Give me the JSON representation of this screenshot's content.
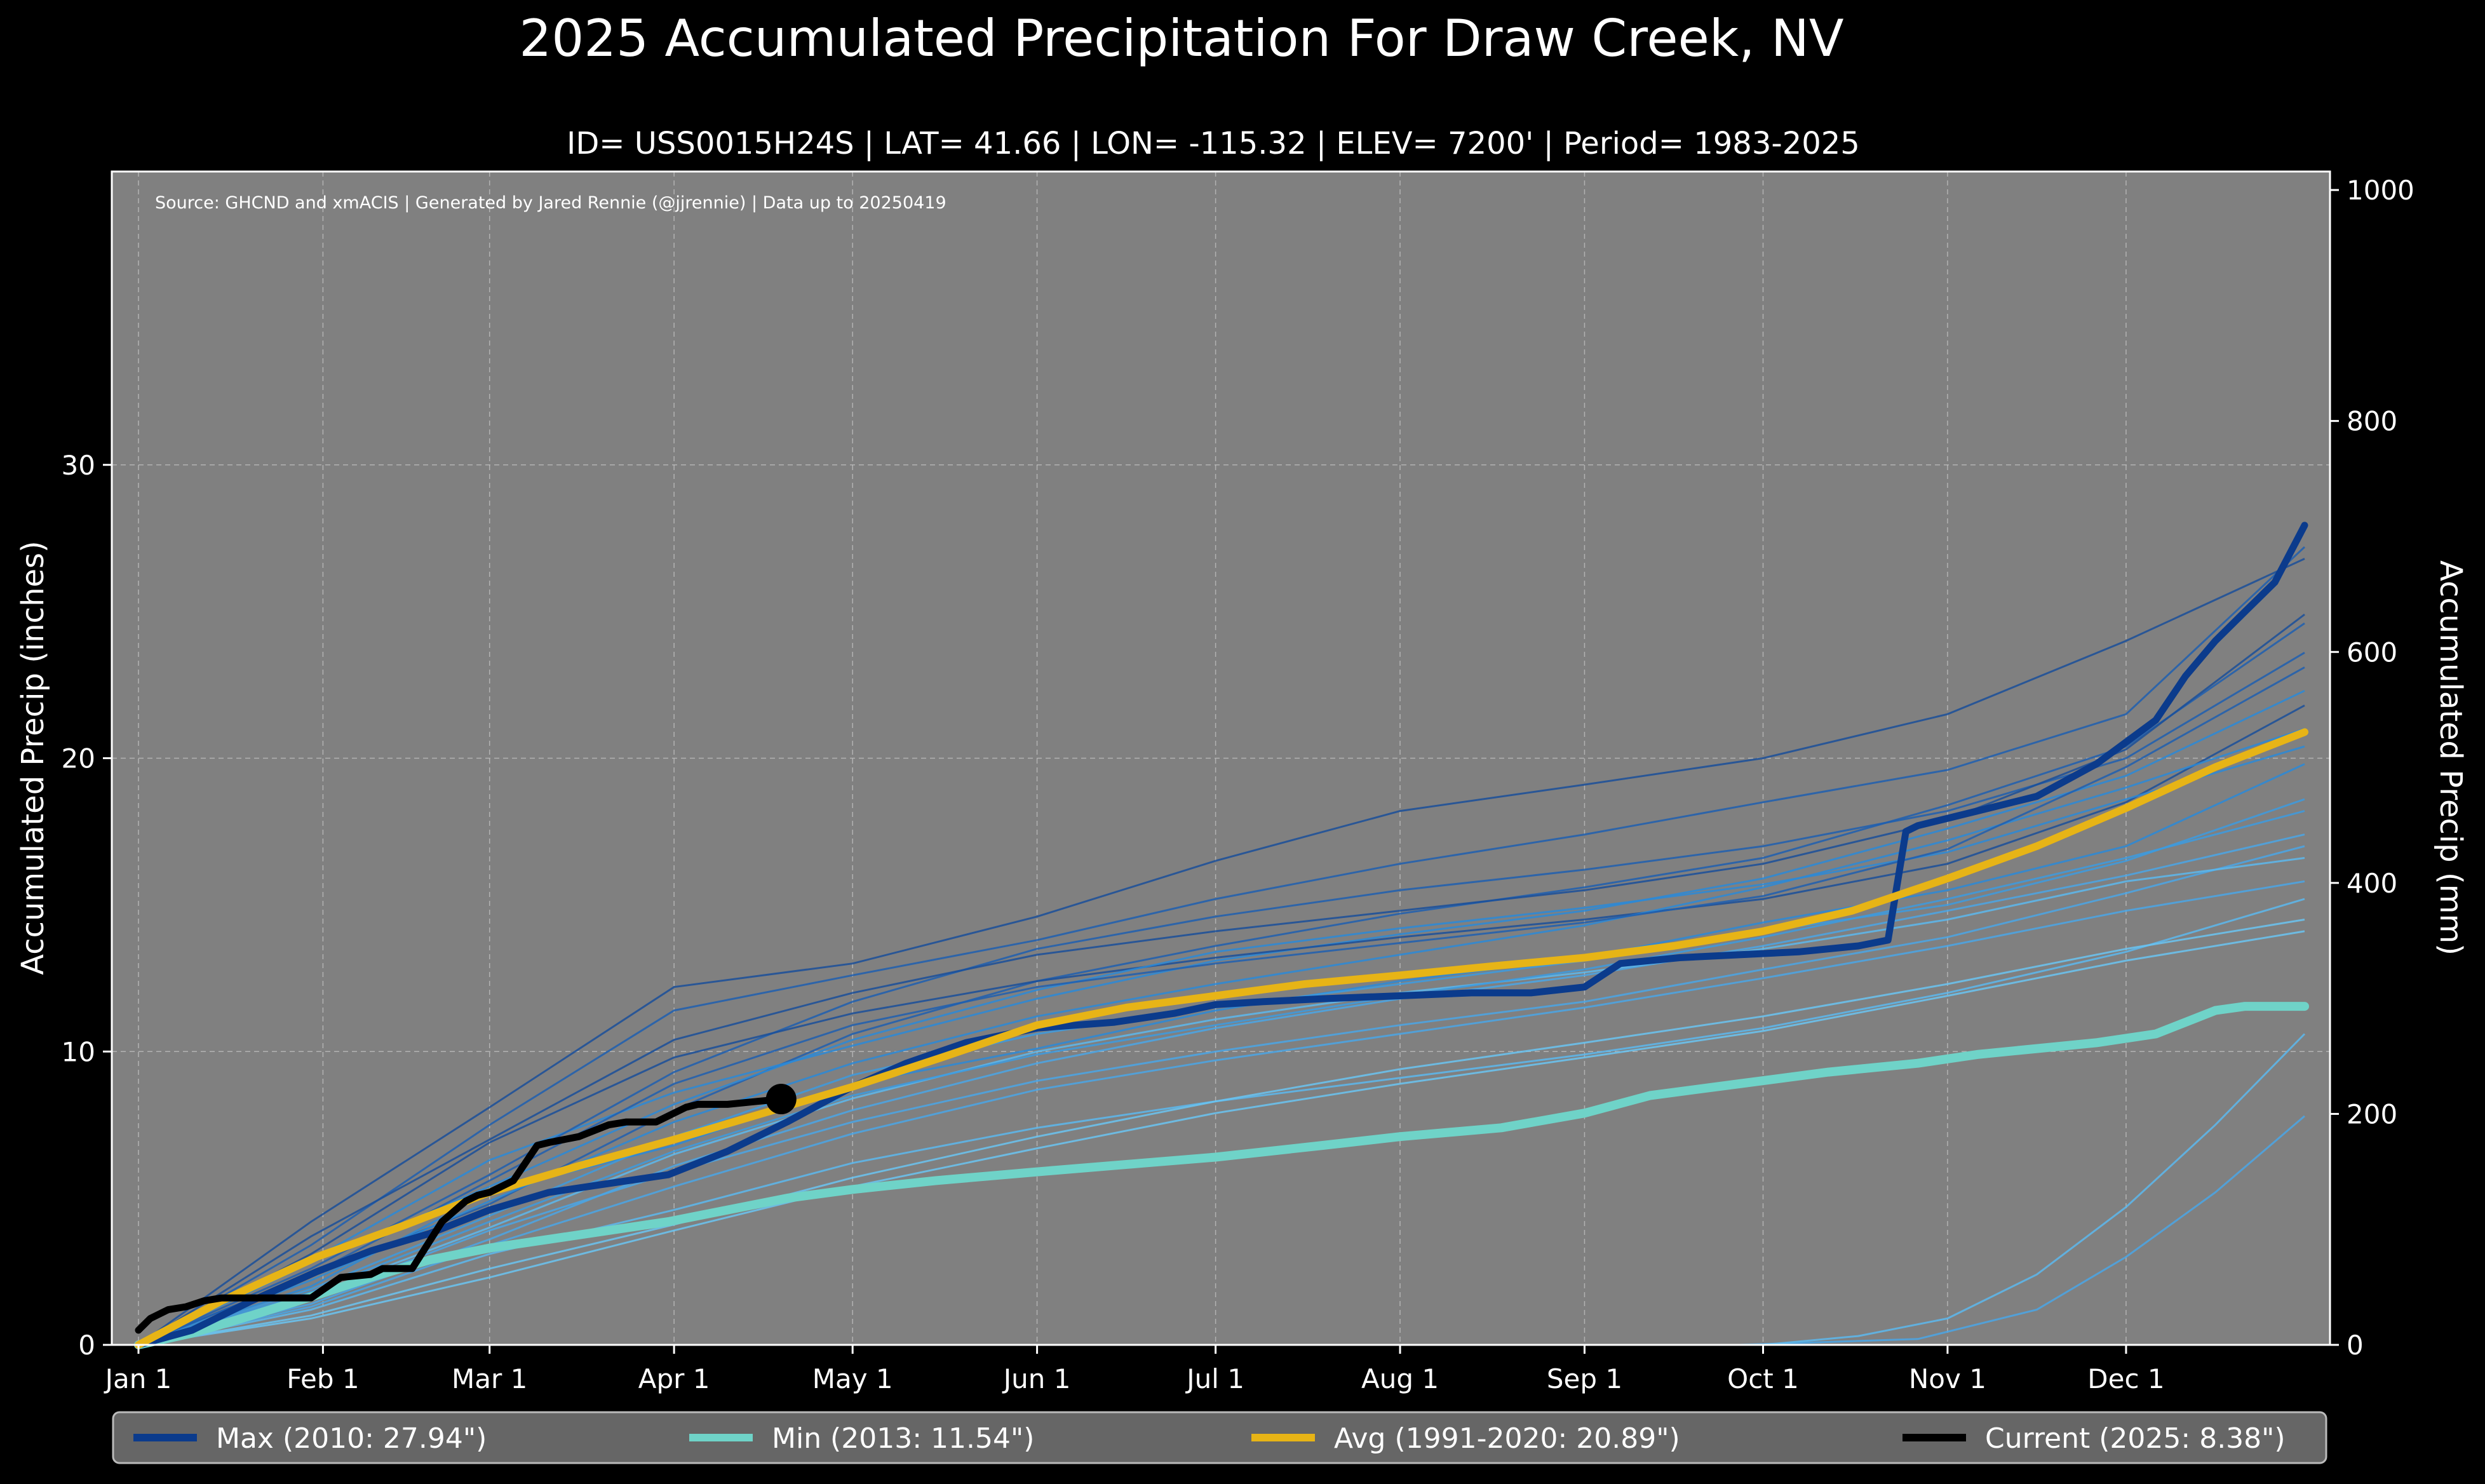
{
  "chart_data": {
    "type": "line",
    "title": "2025 Accumulated Precipitation For Draw Creek, NV",
    "subtitle": "ID= USS0015H24S | LAT= 41.66 | LON= -115.32 | ELEV= 7200' | Period= 1983-2025",
    "source_note": "Source: GHCND and xmACIS | Generated by Jared Rennie (@jjrennie) | Data up to 20250419",
    "ylabel": "Accumulated Precip (inches)",
    "y2label": "Accumulated Precip (mm)",
    "xlabel": "",
    "x_unit": "day of year",
    "xlim": [
      1,
      365
    ],
    "ylim": [
      0,
      40
    ],
    "y2lim": [
      0,
      1016
    ],
    "xticks": [
      {
        "day": 1,
        "label": "Jan 1"
      },
      {
        "day": 32,
        "label": "Feb 1"
      },
      {
        "day": 60,
        "label": "Mar 1"
      },
      {
        "day": 91,
        "label": "Apr 1"
      },
      {
        "day": 121,
        "label": "May 1"
      },
      {
        "day": 152,
        "label": "Jun 1"
      },
      {
        "day": 182,
        "label": "Jul 1"
      },
      {
        "day": 213,
        "label": "Aug 1"
      },
      {
        "day": 244,
        "label": "Sep 1"
      },
      {
        "day": 274,
        "label": "Oct 1"
      },
      {
        "day": 305,
        "label": "Nov 1"
      },
      {
        "day": 335,
        "label": "Dec 1"
      }
    ],
    "yticks": [
      0,
      10,
      20,
      30
    ],
    "y2ticks": [
      0,
      200,
      400,
      600,
      800,
      1000
    ],
    "grid": true,
    "legend_position": "bottom",
    "series": [
      {
        "name": "Max (2010:  27.94\")",
        "role": "max",
        "color": "#0b3b8c",
        "x": [
          1,
          10,
          20,
          31,
          40,
          50,
          60,
          70,
          80,
          90,
          100,
          110,
          121,
          130,
          140,
          152,
          165,
          175,
          182,
          190,
          200,
          213,
          225,
          235,
          244,
          250,
          260,
          270,
          280,
          290,
          295,
          298,
          300,
          310,
          320,
          330,
          340,
          345,
          350,
          355,
          360,
          365
        ],
        "values": [
          0.0,
          0.5,
          1.5,
          2.5,
          3.2,
          3.8,
          4.6,
          5.2,
          5.5,
          5.8,
          6.6,
          7.6,
          8.8,
          9.6,
          10.3,
          10.8,
          11.0,
          11.3,
          11.6,
          11.7,
          11.8,
          11.9,
          12.0,
          12.0,
          12.2,
          13.0,
          13.2,
          13.3,
          13.4,
          13.6,
          13.8,
          17.5,
          17.7,
          18.2,
          18.7,
          19.8,
          21.3,
          22.8,
          24.0,
          25.0,
          26.0,
          27.94
        ]
      },
      {
        "name": "Min (2013:  11.54\")",
        "role": "min",
        "color": "#6fd3c8",
        "x": [
          1,
          10,
          20,
          31,
          40,
          50,
          60,
          70,
          80,
          90,
          100,
          110,
          121,
          135,
          152,
          170,
          182,
          200,
          213,
          230,
          244,
          255,
          270,
          285,
          300,
          310,
          320,
          330,
          340,
          345,
          350,
          355,
          365
        ],
        "values": [
          0.0,
          0.4,
          1.0,
          1.7,
          2.3,
          2.9,
          3.3,
          3.6,
          3.9,
          4.2,
          4.6,
          5.0,
          5.3,
          5.6,
          5.9,
          6.2,
          6.4,
          6.8,
          7.1,
          7.4,
          7.9,
          8.5,
          8.9,
          9.3,
          9.6,
          9.9,
          10.1,
          10.3,
          10.6,
          11.0,
          11.4,
          11.54,
          11.54
        ]
      },
      {
        "name": "Avg (1991-2020:  20.89\")",
        "role": "avg",
        "color": "#e7b416",
        "x": [
          1,
          15,
          31,
          46,
          60,
          75,
          91,
          106,
          121,
          136,
          152,
          167,
          182,
          197,
          213,
          228,
          244,
          259,
          274,
          289,
          305,
          320,
          335,
          350,
          365
        ],
        "values": [
          0.0,
          1.5,
          3.0,
          4.1,
          5.2,
          6.1,
          7.0,
          7.9,
          8.8,
          9.8,
          10.9,
          11.5,
          11.9,
          12.3,
          12.6,
          12.9,
          13.2,
          13.6,
          14.1,
          14.8,
          15.9,
          17.0,
          18.3,
          19.7,
          20.89
        ]
      },
      {
        "name": "Current (2025:   8.38\")",
        "role": "current",
        "color": "#000000",
        "x": [
          1,
          3,
          6,
          9,
          12,
          15,
          20,
          25,
          30,
          35,
          40,
          42,
          47,
          52,
          56,
          58,
          60,
          64,
          68,
          70,
          75,
          80,
          83,
          88,
          93,
          95,
          100,
          105,
          109
        ],
        "values": [
          0.5,
          0.9,
          1.2,
          1.3,
          1.5,
          1.6,
          1.6,
          1.6,
          1.6,
          2.3,
          2.4,
          2.6,
          2.6,
          4.2,
          4.9,
          5.1,
          5.2,
          5.6,
          6.8,
          6.9,
          7.1,
          7.5,
          7.6,
          7.6,
          8.1,
          8.2,
          8.2,
          8.3,
          8.38
        ]
      }
    ],
    "historical_years": [
      {
        "x": [
          1,
          30,
          60,
          91,
          121,
          152,
          182,
          213,
          244,
          274,
          305,
          335,
          365
        ],
        "values": [
          0,
          2.4,
          4.8,
          8.0,
          10.6,
          12.4,
          13.6,
          14.7,
          15.6,
          16.6,
          18.4,
          20.4,
          24.6
        ],
        "tone": "#1f5fb0"
      },
      {
        "x": [
          1,
          30,
          60,
          91,
          121,
          152,
          182,
          213,
          244,
          274,
          305,
          335,
          365
        ],
        "values": [
          0,
          3.4,
          7.5,
          11.4,
          12.6,
          13.8,
          15.2,
          16.4,
          17.4,
          18.5,
          19.6,
          21.5,
          27.2
        ],
        "tone": "#1f5fb0"
      },
      {
        "x": [
          1,
          30,
          60,
          91,
          121,
          152,
          182,
          213,
          244,
          274,
          305,
          335,
          365
        ],
        "values": [
          0,
          4.2,
          8.1,
          12.2,
          13.0,
          14.6,
          16.5,
          18.2,
          19.1,
          20.0,
          21.5,
          24.0,
          26.8
        ],
        "tone": "#1a4f9a"
      },
      {
        "x": [
          1,
          30,
          60,
          91,
          121,
          152,
          182,
          213,
          244,
          274,
          305,
          335,
          365
        ],
        "values": [
          0,
          2.0,
          5.2,
          6.8,
          8.9,
          10.1,
          11.4,
          12.4,
          13.2,
          14.4,
          15.5,
          17.0,
          19.8
        ],
        "tone": "#2a8ad8"
      },
      {
        "x": [
          1,
          30,
          60,
          91,
          121,
          152,
          182,
          213,
          244,
          274,
          305,
          335,
          365
        ],
        "values": [
          0,
          1.6,
          3.9,
          5.9,
          7.6,
          9.0,
          10.0,
          10.9,
          11.7,
          12.8,
          13.9,
          15.4,
          17.0
        ],
        "tone": "#4aa6e6"
      },
      {
        "x": [
          1,
          30,
          60,
          91,
          121,
          152,
          182,
          213,
          244,
          274,
          305,
          335,
          365
        ],
        "values": [
          0,
          2.9,
          6.3,
          8.6,
          10.2,
          11.8,
          13.1,
          14.0,
          14.8,
          15.9,
          17.6,
          19.4,
          22.3
        ],
        "tone": "#2a8ad8"
      },
      {
        "x": [
          1,
          30,
          60,
          91,
          121,
          152,
          182,
          213,
          244,
          274,
          305,
          335,
          365
        ],
        "values": [
          0,
          1.2,
          3.1,
          4.6,
          6.2,
          7.4,
          8.3,
          9.1,
          9.9,
          10.8,
          12.0,
          13.4,
          15.2
        ],
        "tone": "#5cb8ee"
      },
      {
        "x": [
          1,
          30,
          60,
          91,
          121,
          152,
          182,
          213,
          244,
          274,
          305,
          335,
          365
        ],
        "values": [
          0,
          2.6,
          5.8,
          9.3,
          11.7,
          13.5,
          14.6,
          15.5,
          16.2,
          17.0,
          18.2,
          20.0,
          23.6
        ],
        "tone": "#1f5fb0"
      },
      {
        "x": [
          1,
          30,
          60,
          91,
          121,
          152,
          182,
          213,
          244,
          274,
          305,
          335,
          365
        ],
        "values": [
          0,
          1.9,
          4.4,
          7.1,
          9.2,
          10.6,
          11.5,
          12.3,
          13.1,
          14.1,
          15.0,
          16.5,
          18.6
        ],
        "tone": "#3c9be0"
      },
      {
        "x": [
          1,
          30,
          60,
          91,
          121,
          152,
          182,
          213,
          244,
          274,
          305,
          335,
          365
        ],
        "values": [
          0,
          3.1,
          6.9,
          9.8,
          11.3,
          12.4,
          13.2,
          13.9,
          14.5,
          15.2,
          16.4,
          18.5,
          21.8
        ],
        "tone": "#1a4f9a"
      },
      {
        "x": [
          1,
          30,
          60,
          91,
          121,
          152,
          182,
          213,
          244,
          274,
          305,
          335,
          365
        ],
        "values": [
          0,
          1.4,
          3.6,
          6.1,
          8.0,
          9.6,
          10.8,
          11.8,
          12.6,
          13.6,
          14.8,
          16.0,
          17.4
        ],
        "tone": "#4aa6e6"
      },
      {
        "x": [
          1,
          30,
          60,
          91,
          121,
          152,
          182,
          213,
          244,
          274,
          305,
          335,
          365
        ],
        "values": [
          0,
          2.2,
          4.9,
          7.6,
          9.6,
          11.2,
          12.3,
          13.3,
          14.3,
          15.6,
          17.2,
          19.0,
          21.0
        ],
        "tone": "#2a8ad8"
      },
      {
        "x": [
          1,
          30,
          60,
          91,
          121,
          152,
          182,
          213,
          244,
          274,
          305,
          335,
          365
        ],
        "values": [
          0,
          1.0,
          2.6,
          4.1,
          5.7,
          7.1,
          8.3,
          9.4,
          10.3,
          11.2,
          12.3,
          13.5,
          14.5
        ],
        "tone": "#6ac4f2"
      },
      {
        "x": [
          1,
          30,
          60,
          91,
          121,
          152,
          182,
          213,
          244,
          274,
          305,
          335,
          365
        ],
        "values": [
          0,
          3.7,
          7.0,
          10.4,
          12.0,
          13.3,
          14.1,
          14.8,
          15.5,
          16.4,
          17.9,
          20.3,
          24.9
        ],
        "tone": "#1a4f9a"
      },
      {
        "x": [
          1,
          30,
          60,
          91,
          121,
          152,
          182,
          213,
          244,
          274,
          305,
          335,
          365
        ],
        "values": [
          0,
          1.7,
          4.0,
          6.5,
          8.4,
          10.0,
          11.1,
          12.0,
          12.7,
          13.5,
          14.5,
          15.8,
          16.6
        ],
        "tone": "#5cb8ee"
      },
      {
        "x": [
          1,
          30,
          60,
          91,
          121,
          152,
          182,
          213,
          244,
          274,
          305,
          335,
          365
        ],
        "values": [
          0,
          2.8,
          5.4,
          8.2,
          10.4,
          12.1,
          13.4,
          14.2,
          14.9,
          15.7,
          16.8,
          18.6,
          20.4
        ],
        "tone": "#2a8ad8"
      },
      {
        "x": [
          1,
          30,
          60,
          91,
          121,
          152,
          182,
          213,
          244,
          274,
          305,
          335,
          365
        ],
        "values": [
          0,
          1.3,
          3.4,
          5.4,
          7.2,
          8.7,
          9.7,
          10.6,
          11.5,
          12.5,
          13.6,
          14.8,
          15.8
        ],
        "tone": "#4aa6e6"
      },
      {
        "x": [
          1,
          30,
          60,
          91,
          121,
          152,
          182,
          213,
          244,
          274,
          305,
          335,
          365
        ],
        "values": [
          0,
          2.4,
          5.6,
          8.9,
          10.9,
          12.2,
          13.0,
          13.7,
          14.4,
          15.3,
          16.9,
          19.7,
          23.1
        ],
        "tone": "#1f5fb0"
      },
      {
        "x": [
          1,
          30,
          60,
          91,
          121,
          152,
          182,
          213,
          244,
          274,
          305,
          335,
          365
        ],
        "values": [
          0,
          1.8,
          4.2,
          6.6,
          8.5,
          9.9,
          10.9,
          11.9,
          12.8,
          13.9,
          15.2,
          16.6,
          18.2
        ],
        "tone": "#3c9be0"
      },
      {
        "x": [
          1,
          30,
          60,
          91,
          121,
          152,
          182,
          213,
          244,
          274,
          305,
          335,
          365
        ],
        "values": [
          0,
          0.9,
          2.3,
          3.9,
          5.4,
          6.7,
          7.9,
          8.9,
          9.8,
          10.7,
          11.9,
          13.1,
          14.1
        ],
        "tone": "#6ac4f2"
      },
      {
        "x": [
          1,
          210,
          240,
          270,
          300,
          320,
          335,
          350,
          365
        ],
        "values": [
          0,
          0,
          0,
          0,
          0.2,
          1.2,
          3.0,
          5.2,
          7.8
        ],
        "tone": "#4aa6e6"
      },
      {
        "x": [
          1,
          250,
          274,
          290,
          305,
          320,
          335,
          350,
          365
        ],
        "values": [
          0,
          0,
          0,
          0.3,
          0.9,
          2.4,
          4.7,
          7.5,
          10.6
        ],
        "tone": "#5cb8ee"
      }
    ],
    "current_marker": {
      "x": 109,
      "y": 8.38
    },
    "legend": [
      {
        "label": "Max (2010:  27.94\")",
        "color": "#0b3b8c"
      },
      {
        "label": "Min (2013:  11.54\")",
        "color": "#6fd3c8"
      },
      {
        "label": "Avg (1991-2020:  20.89\")",
        "color": "#e7b416"
      },
      {
        "label": "Current (2025:   8.38\")",
        "color": "#000000"
      }
    ],
    "colors": {
      "figure_bg": "#000000",
      "plot_bg": "#808080",
      "grid": "#c8c8c8",
      "legend_bg": "#666666",
      "legend_border": "#bbbbbb"
    }
  }
}
